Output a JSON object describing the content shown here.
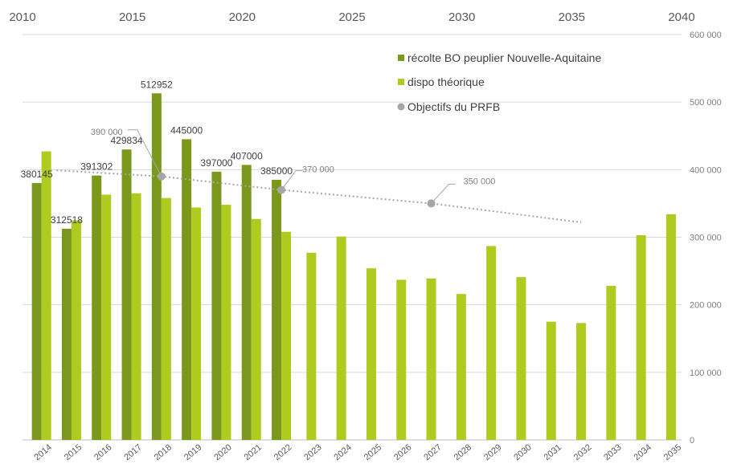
{
  "chart_data": {
    "type": "bar",
    "categories": [
      "2014",
      "2015",
      "2016",
      "2017",
      "2018",
      "2019",
      "2020",
      "2021",
      "2022",
      "2023",
      "2024",
      "2025",
      "2026",
      "2027",
      "2028",
      "2029",
      "2030",
      "2031",
      "2032",
      "2033",
      "2034",
      "2035"
    ],
    "series": [
      {
        "name": "récolte BO peuplier Nouvelle-Aquitaine",
        "color": "#7a991c",
        "values": [
          380145,
          312518,
          391302,
          429834,
          512952,
          445000,
          397000,
          407000,
          385000,
          null,
          null,
          null,
          null,
          null,
          null,
          null,
          null,
          null,
          null,
          null,
          null,
          null
        ],
        "labels": [
          "380145",
          "312518",
          "391302",
          "429834",
          "512952",
          "445000",
          "397000",
          "407000",
          "385000"
        ]
      },
      {
        "name": "dispo théorique",
        "color": "#afcb1f",
        "values": [
          427000,
          325000,
          363000,
          365000,
          358000,
          344000,
          348000,
          327000,
          308000,
          277000,
          301000,
          254000,
          237000,
          239000,
          216000,
          287000,
          241000,
          175000,
          173000,
          228000,
          303000,
          334000
        ]
      }
    ],
    "objectives": {
      "name": "Objectifs du PRFB",
      "color": "#a6a6a6",
      "line_points": [
        {
          "x": 2014.5,
          "y": 399000
        },
        {
          "x": 2018,
          "y": 390000
        },
        {
          "x": 2022,
          "y": 370000
        },
        {
          "x": 2027,
          "y": 350000
        },
        {
          "x": 2032,
          "y": 322000
        }
      ],
      "markers": [
        {
          "x": 2018,
          "y": 390000,
          "label": "390 000"
        },
        {
          "x": 2022,
          "y": 370000,
          "label": "370 000"
        },
        {
          "x": 2027,
          "y": 350000,
          "label": "350 000"
        }
      ]
    },
    "y_axis": {
      "ylim": [
        0,
        600000
      ],
      "ticks": [
        0,
        100000,
        200000,
        300000,
        400000,
        500000,
        600000
      ],
      "tick_labels": [
        "0",
        "100 000",
        "200 000",
        "300 000",
        "400 000",
        "500 000",
        "600 000"
      ],
      "position": "right"
    },
    "top_axis": {
      "range": [
        2010,
        2040
      ],
      "ticks": [
        2010,
        2015,
        2020,
        2025,
        2030,
        2035,
        2040
      ],
      "tick_labels": [
        "2010",
        "2015",
        "2020",
        "2025",
        "2030",
        "2035",
        "2040"
      ]
    },
    "grid": true,
    "legend": {
      "position": "top-right",
      "entries": [
        "récolte BO peuplier Nouvelle-Aquitaine",
        "dispo théorique",
        "Objectifs du PRFB"
      ]
    }
  }
}
